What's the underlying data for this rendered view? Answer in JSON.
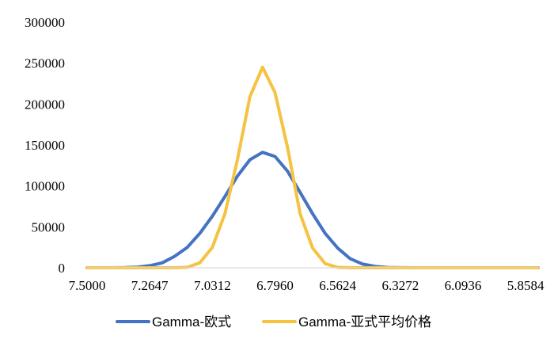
{
  "chart_data": {
    "type": "line",
    "title": "",
    "xlabel": "",
    "ylabel": "",
    "ylim": [
      0,
      300000
    ],
    "yticks": [
      "0",
      "50000",
      "100000",
      "150000",
      "200000",
      "250000",
      "300000"
    ],
    "x_tick_labels": [
      "7.5000",
      "7.2647",
      "7.0312",
      "6.7960",
      "6.5624",
      "6.3272",
      "6.0936",
      "5.8584"
    ],
    "x_tick_positions": [
      0,
      5,
      10,
      15,
      20,
      25,
      30,
      35
    ],
    "x_count": 37,
    "grid": false,
    "legend_position": "bottom",
    "series": [
      {
        "name": "Gamma-欧式",
        "color": "#4472C4",
        "values": [
          0,
          0,
          0,
          200,
          800,
          2500,
          6000,
          14000,
          25000,
          42000,
          63000,
          87000,
          112000,
          132000,
          141000,
          136000,
          118000,
          92000,
          66000,
          42000,
          24000,
          11000,
          4500,
          1500,
          400,
          100,
          0,
          0,
          0,
          0,
          0,
          0,
          0,
          0,
          0,
          0,
          0
        ]
      },
      {
        "name": "Gamma-亚式平均价格",
        "color": "#F5C242",
        "values": [
          0,
          0,
          0,
          0,
          0,
          0,
          0,
          0,
          500,
          6000,
          25000,
          66000,
          132000,
          209000,
          245000,
          214000,
          147000,
          66000,
          24000,
          5000,
          500,
          0,
          0,
          0,
          0,
          0,
          0,
          0,
          0,
          0,
          0,
          0,
          0,
          0,
          0,
          0,
          0
        ]
      }
    ]
  }
}
